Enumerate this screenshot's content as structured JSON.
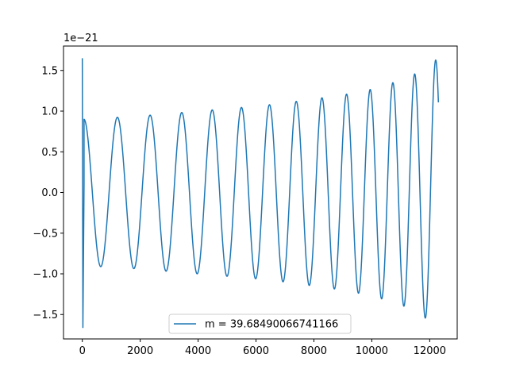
{
  "chart_data": {
    "type": "line",
    "title": "",
    "xlabel": "",
    "ylabel": "",
    "offset_text": "1e−21",
    "xlim": [
      -650,
      12950
    ],
    "ylim": [
      -1.8,
      1.8
    ],
    "x_ticks": [
      0,
      2000,
      4000,
      6000,
      8000,
      10000,
      12000
    ],
    "x_tick_labels": [
      "0",
      "2000",
      "4000",
      "6000",
      "8000",
      "10000",
      "12000"
    ],
    "y_ticks": [
      -1.5,
      -1.0,
      -0.5,
      0.0,
      0.5,
      1.0,
      1.5
    ],
    "y_tick_labels": [
      "−1.5",
      "−1.0",
      "−0.5",
      "0.0",
      "0.5",
      "1.0",
      "1.5"
    ],
    "grid": false,
    "legend_position": "lower center",
    "series": [
      {
        "name": "m = 39.68490066741166",
        "color": "#1f77b4",
        "description": "oscillating waveform, amplitude in units of 1e-21",
        "x_start": 0,
        "x_end": 12300,
        "initial_spike": [
          1.65,
          -1.66
        ],
        "envelope_x": [
          0,
          200,
          1000,
          2000,
          3000,
          4000,
          5000,
          6000,
          7000,
          8000,
          9000,
          10000,
          11000,
          11500,
          12000,
          12300
        ],
        "envelope_upper": [
          0.9,
          0.9,
          0.92,
          0.94,
          0.97,
          1.0,
          1.03,
          1.06,
          1.1,
          1.15,
          1.2,
          1.27,
          1.38,
          1.46,
          1.58,
          1.65
        ],
        "envelope_lower": [
          -0.9,
          -0.9,
          -0.92,
          -0.94,
          -0.97,
          -1.0,
          -1.03,
          -1.06,
          -1.1,
          -1.15,
          -1.2,
          -1.27,
          -1.38,
          -1.46,
          -1.58,
          -1.63
        ]
      }
    ]
  }
}
